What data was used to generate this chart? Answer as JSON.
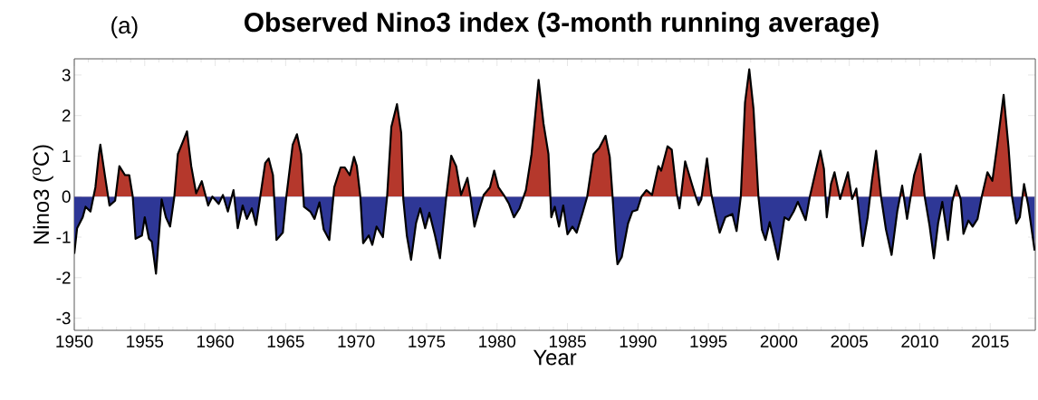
{
  "chart_data": {
    "type": "area",
    "title": "Observed Nino3 index (3-month running average)",
    "annotations": [
      "(a)"
    ],
    "xlabel": "Year",
    "ylabel": "Nino3 ($^{o}$C)",
    "xlim": [
      1950,
      2018.2
    ],
    "xticks": [
      1950,
      1955,
      1960,
      1965,
      1970,
      1975,
      1980,
      1985,
      1990,
      1995,
      2000,
      2005,
      2010,
      2015
    ],
    "ylim": [
      -3.3,
      3.4
    ],
    "yticks": [
      -3,
      -2,
      -1,
      0,
      1,
      2,
      3
    ],
    "grid": false,
    "line_style": "solid",
    "series": [
      {
        "color": "#000000",
        "colors": [
          "#2e3796",
          "#2e3796",
          "#2e3796",
          "#2e3796",
          "#2e3796",
          "#b5382c",
          "#b5382c",
          "#b5382c",
          "#b5382c",
          "#2e3796",
          "#2e3796",
          "#b5382c",
          "#b5382c",
          "#b5382c",
          "#b5382c",
          "#2e3796",
          "#2e3796",
          "#2e3796",
          "#2e3796",
          "#2e3796",
          "#2e3796",
          "#2e3796",
          "#2e3796",
          "#2e3796",
          "#b5382c",
          "#b5382c",
          "#b5382c",
          "#b5382c",
          "#b5382c",
          "#b5382c",
          "#b5382c",
          "#2e3796",
          "#b5382c",
          "#2e3796",
          "#b5382c",
          "#2e3796",
          "#b5382c",
          "#2e3796",
          "#2e3796",
          "#2e3796",
          "#2e3796",
          "#2e3796",
          "#b5382c",
          "#b5382c",
          "#b5382c",
          "#b5382c",
          "#2e3796",
          "#2e3796",
          "#b5382c",
          "#b5382c",
          "#b5382c",
          "#b5382c",
          "#2e3796",
          "#2e3796",
          "#2e3796",
          "#2e3796",
          "#2e3796",
          "#2e3796",
          "#b5382c",
          "#b5382c",
          "#b5382c",
          "#b5382c",
          "#b5382c",
          "#b5382c",
          "#b5382c",
          "#2e3796",
          "#2e3796",
          "#2e3796",
          "#2e3796",
          "#2e3796",
          "#b5382c",
          "#b5382c",
          "#b5382c",
          "#b5382c",
          "#2e3796",
          "#2e3796",
          "#2e3796",
          "#2e3796",
          "#2e3796",
          "#2e3796",
          "#2e3796",
          "#2e3796",
          "#2e3796",
          "#b5382c",
          "#b5382c",
          "#b5382c",
          "#b5382c",
          "#b5382c",
          "#b5382c",
          "#2e3796",
          "#2e3796",
          "#b5382c",
          "#b5382c",
          "#b5382c",
          "#b5382c",
          "#b5382c",
          "#2e3796",
          "#2e3796",
          "#2e3796",
          "#b5382c",
          "#b5382c",
          "#b5382c",
          "#b5382c",
          "#b5382c",
          "#2e3796",
          "#2e3796",
          "#2e3796",
          "#2e3796",
          "#2e3796",
          "#2e3796",
          "#2e3796",
          "#2e3796",
          "#b5382c",
          "#b5382c",
          "#b5382c",
          "#b5382c",
          "#b5382c",
          "#b5382c",
          "#2e3796",
          "#2e3796",
          "#2e3796",
          "#2e3796",
          "#2e3796",
          "#2e3796",
          "#b5382c",
          "#b5382c",
          "#b5382c",
          "#b5382c",
          "#b5382c",
          "#b5382c",
          "#b5382c",
          "#b5382c",
          "#2e3796",
          "#b5382c",
          "#b5382c",
          "#b5382c",
          "#2e3796",
          "#2e3796",
          "#b5382c",
          "#b5382c",
          "#2e3796",
          "#2e3796",
          "#2e3796",
          "#2e3796",
          "#2e3796",
          "#b5382c",
          "#b5382c",
          "#b5382c",
          "#b5382c",
          "#b5382c",
          "#2e3796",
          "#2e3796",
          "#2e3796",
          "#2e3796",
          "#2e3796",
          "#2e3796",
          "#2e3796",
          "#2e3796",
          "#2e3796",
          "#2e3796",
          "#b5382c",
          "#b5382c",
          "#b5382c",
          "#b5382c",
          "#2e3796",
          "#b5382c",
          "#b5382c",
          "#2e3796",
          "#b5382c",
          "#2e3796",
          "#b5382c",
          "#2e3796",
          "#2e3796",
          "#b5382c",
          "#b5382c",
          "#b5382c",
          "#2e3796",
          "#2e3796",
          "#2e3796",
          "#b5382c",
          "#2e3796",
          "#b5382c",
          "#b5382c",
          "#b5382c",
          "#2e3796",
          "#2e3796",
          "#2e3796",
          "#2e3796",
          "#2e3796",
          "#2e3796",
          "#b5382c",
          "#2e3796",
          "#2e3796",
          "#2e3796",
          "#2e3796",
          "#2e3796",
          "#2e3796",
          "#b5382c",
          "#b5382c",
          "#b5382c",
          "#b5382c",
          "#b5382c",
          "#b5382c",
          "#2e3796",
          "#2e3796",
          "#b5382c",
          "#2e3796",
          "#2e3796"
        ],
        "x": [
          1950.0,
          1950.2,
          1950.6,
          1950.8,
          1951.15,
          1951.5,
          1951.75,
          1951.85,
          1952.2,
          1952.5,
          1952.9,
          1953.2,
          1953.6,
          1953.9,
          1954.15,
          1954.35,
          1954.8,
          1955.0,
          1955.3,
          1955.5,
          1955.8,
          1956.2,
          1956.5,
          1956.8,
          1957.1,
          1957.35,
          1957.7,
          1958.0,
          1958.3,
          1958.65,
          1959.05,
          1959.5,
          1959.8,
          1960.25,
          1960.55,
          1960.9,
          1961.3,
          1961.6,
          1961.95,
          1962.25,
          1962.6,
          1962.9,
          1963.2,
          1963.55,
          1963.8,
          1964.1,
          1964.35,
          1964.8,
          1965.05,
          1965.5,
          1965.8,
          1966.1,
          1966.3,
          1966.75,
          1967.05,
          1967.4,
          1967.7,
          1968.1,
          1968.45,
          1968.9,
          1969.2,
          1969.55,
          1969.85,
          1970.05,
          1970.3,
          1970.5,
          1970.9,
          1971.15,
          1971.45,
          1971.9,
          1972.2,
          1972.5,
          1972.9,
          1973.2,
          1973.35,
          1973.6,
          1973.9,
          1974.25,
          1974.55,
          1974.9,
          1975.2,
          1975.6,
          1975.95,
          1976.4,
          1976.75,
          1977.1,
          1977.45,
          1977.9,
          1978.1,
          1978.4,
          1978.7,
          1979.05,
          1979.5,
          1979.8,
          1980.1,
          1980.55,
          1980.85,
          1981.2,
          1981.6,
          1982.05,
          1982.45,
          1982.95,
          1983.3,
          1983.65,
          1983.85,
          1984.1,
          1984.4,
          1984.7,
          1985.0,
          1985.35,
          1985.65,
          1986.1,
          1986.4,
          1986.85,
          1987.25,
          1987.7,
          1988.0,
          1988.2,
          1988.45,
          1988.55,
          1988.85,
          1989.3,
          1989.6,
          1989.95,
          1990.25,
          1990.6,
          1991.0,
          1991.45,
          1991.65,
          1992.1,
          1992.4,
          1992.75,
          1992.95,
          1993.35,
          1993.8,
          1994.1,
          1994.3,
          1994.5,
          1994.9,
          1995.2,
          1995.5,
          1995.8,
          1996.2,
          1996.7,
          1997.0,
          1997.3,
          1997.6,
          1997.9,
          1998.2,
          1998.55,
          1998.8,
          1999.05,
          1999.35,
          1999.65,
          1999.95,
          2000.4,
          2000.7,
          2001.05,
          2001.35,
          2001.9,
          2002.2,
          2002.55,
          2002.95,
          2003.2,
          2003.4,
          2003.7,
          2003.95,
          2004.35,
          2004.9,
          2005.2,
          2005.5,
          2005.95,
          2006.3,
          2006.6,
          2006.9,
          2007.25,
          2007.6,
          2008.0,
          2008.4,
          2008.75,
          2009.1,
          2009.6,
          2010.05,
          2010.35,
          2010.7,
          2011.0,
          2011.3,
          2011.6,
          2012.0,
          2012.3,
          2012.6,
          2012.9,
          2013.1,
          2013.45,
          2013.75,
          2014.1,
          2014.4,
          2014.8,
          2015.15,
          2015.5,
          2015.95,
          2016.3,
          2016.55,
          2016.85,
          2017.1,
          2017.4,
          2017.7,
          2018.15
        ],
        "values": [
          -1.41,
          -0.78,
          -0.51,
          -0.25,
          -0.37,
          0.23,
          1.05,
          1.28,
          0.46,
          -0.22,
          -0.1,
          0.75,
          0.53,
          0.53,
          0,
          -1.04,
          -0.96,
          -0.51,
          -1.04,
          -1.11,
          -1.9,
          -0.07,
          -0.51,
          -0.74,
          0,
          1.05,
          1.35,
          1.61,
          0.75,
          0.08,
          0.38,
          -0.22,
          0,
          -0.18,
          0.04,
          -0.37,
          0.16,
          -0.78,
          -0.22,
          -0.55,
          -0.29,
          -0.7,
          0,
          0.83,
          0.94,
          0.53,
          -1.07,
          -0.89,
          0,
          1.28,
          1.54,
          1.05,
          -0.25,
          -0.37,
          -0.55,
          -0.14,
          -0.81,
          -1.07,
          0.23,
          0.72,
          0.72,
          0.53,
          0.98,
          0.75,
          0,
          -1.15,
          -0.96,
          -1.19,
          -0.74,
          -1.0,
          0,
          1.72,
          2.28,
          1.57,
          -0.07,
          -0.96,
          -1.56,
          -0.66,
          -0.29,
          -0.78,
          -0.4,
          -0.96,
          -1.52,
          0,
          1.01,
          0.75,
          0.04,
          0.46,
          0.04,
          -0.74,
          -0.37,
          0.04,
          0.23,
          0.64,
          0.23,
          0,
          -0.18,
          -0.51,
          -0.29,
          0.16,
          1.05,
          2.88,
          1.8,
          1.05,
          -0.51,
          -0.25,
          -0.74,
          -0.22,
          -0.93,
          -0.74,
          -0.89,
          -0.37,
          0,
          1.05,
          1.2,
          1.5,
          0.98,
          0,
          -1.34,
          -1.67,
          -1.49,
          -0.66,
          -0.37,
          -0.33,
          0,
          0.16,
          0.04,
          0.75,
          0.64,
          1.24,
          1.16,
          0.08,
          -0.29,
          0.87,
          0.34,
          0,
          -0.21,
          -0.06,
          0.94,
          0.08,
          -0.43,
          -0.89,
          -0.51,
          -0.43,
          -0.85,
          0,
          2.32,
          3.14,
          2.17,
          0,
          -0.82,
          -1.07,
          -0.63,
          -1.1,
          -1.55,
          -0.51,
          -0.58,
          -0.37,
          -0.13,
          -0.58,
          0,
          0.53,
          1.13,
          0.68,
          -0.51,
          0.31,
          0.6,
          -0.06,
          0.6,
          -0.06,
          0.2,
          -1.22,
          -0.51,
          0.38,
          1.13,
          0,
          -0.81,
          -1.44,
          -0.37,
          0.27,
          -0.55,
          0.53,
          1.05,
          0,
          -0.73,
          -1.52,
          -0.66,
          -0.13,
          -1.07,
          -0.13,
          0.27,
          -0.06,
          -0.92,
          -0.59,
          -0.74,
          -0.55,
          0,
          0.6,
          0.39,
          1.28,
          2.51,
          1.21,
          0,
          -0.66,
          -0.51,
          0.31,
          -0.22,
          -1.33
        ]
      }
    ]
  }
}
